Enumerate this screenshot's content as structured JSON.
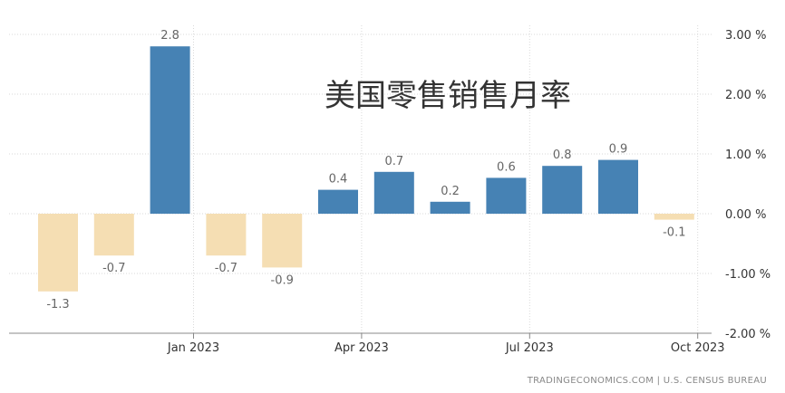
{
  "chart_data": {
    "type": "bar",
    "title": "美国零售销售月率",
    "source": "TRADINGECONOMICS.COM | U.S. CENSUS BUREAU",
    "y_unit": "%",
    "ylim": [
      -2.0,
      3.0
    ],
    "y_ticks": [
      "3.00 %",
      "2.00 %",
      "1.00 %",
      "0.00 %",
      "-1.00 %",
      "-2.00 %"
    ],
    "y_tick_values": [
      3,
      2,
      1,
      0,
      -1,
      -2
    ],
    "x_tick_labels": [
      "Jan 2023",
      "Apr 2023",
      "Jul 2023",
      "Oct 2023"
    ],
    "x_tick_indices": [
      2,
      5,
      8,
      11
    ],
    "values": [
      -1.3,
      -0.7,
      2.8,
      -0.7,
      -0.9,
      0.4,
      0.7,
      0.2,
      0.6,
      0.8,
      0.9,
      -0.1
    ],
    "value_labels": [
      "-1.3",
      "-0.7",
      "2.8",
      "-0.7",
      "-0.9",
      "0.4",
      "0.7",
      "0.2",
      "0.6",
      "0.8",
      "0.9",
      "-0.1"
    ],
    "colors": {
      "positive": "#4682b4",
      "negative": "#f5deb3"
    },
    "grid": true,
    "legend": "none"
  }
}
